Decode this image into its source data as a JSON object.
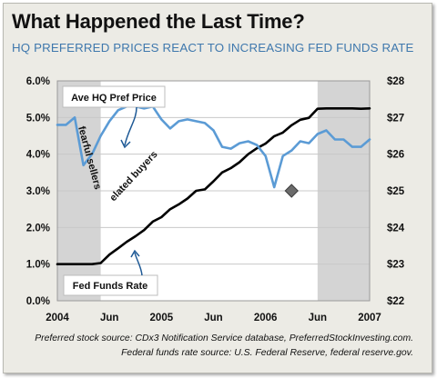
{
  "title": "What Happened the Last Time?",
  "subtitle": "HQ PREFERRED PRICES REACT TO INCREASING FED FUNDS RATE",
  "sources": [
    "Preferred stock source: CDx3 Notification Service database, PreferredStockInvesting.com.",
    "Federal funds rate source: U.S. Federal Reserve, federal reserve.gov."
  ],
  "colors": {
    "fed_funds_line": "#000000",
    "pref_price_line": "#5b9bd5",
    "shaded_region": "#d4d4d4",
    "panel_background": "#ecebe5",
    "subtitle": "#3f78ad"
  },
  "chart_data": {
    "type": "line",
    "x_axis": {
      "range": [
        "2004-01",
        "2007-01"
      ],
      "tick_labels": [
        "2004",
        "Jun",
        "2005",
        "Jun",
        "2006",
        "Jun",
        "2007"
      ]
    },
    "y_left": {
      "range": [
        0,
        6
      ],
      "unit": "%",
      "tick_labels": [
        "0.0%",
        "1.0%",
        "2.0%",
        "3.0%",
        "4.0%",
        "5.0%",
        "6.0%"
      ]
    },
    "y_right": {
      "range": [
        22,
        28
      ],
      "unit": "$",
      "tick_labels": [
        "$22",
        "$23",
        "$24",
        "$25",
        "$26",
        "$27",
        "$28"
      ]
    },
    "grid": true,
    "shaded_periods": [
      {
        "start": "2004-01",
        "end": "2004-06"
      },
      {
        "start": "2006-07",
        "end": "2007-01"
      }
    ],
    "series": [
      {
        "name": "Fed Funds Rate",
        "axis": "left",
        "color": "#000000",
        "x": [
          "2004-01",
          "2004-02",
          "2004-03",
          "2004-04",
          "2004-05",
          "2004-06",
          "2004-07",
          "2004-08",
          "2004-09",
          "2004-10",
          "2004-11",
          "2004-12",
          "2005-01",
          "2005-02",
          "2005-03",
          "2005-04",
          "2005-05",
          "2005-06",
          "2005-07",
          "2005-08",
          "2005-09",
          "2005-10",
          "2005-11",
          "2005-12",
          "2006-01",
          "2006-02",
          "2006-03",
          "2006-04",
          "2006-05",
          "2006-06",
          "2006-07",
          "2006-08",
          "2006-09",
          "2006-10",
          "2006-11",
          "2006-12",
          "2007-01"
        ],
        "values": [
          1.0,
          1.0,
          1.0,
          1.0,
          1.0,
          1.03,
          1.26,
          1.43,
          1.61,
          1.76,
          1.93,
          2.16,
          2.28,
          2.5,
          2.63,
          2.79,
          3.0,
          3.04,
          3.26,
          3.5,
          3.62,
          3.78,
          4.0,
          4.16,
          4.29,
          4.49,
          4.59,
          4.79,
          4.94,
          4.99,
          5.24,
          5.25,
          5.25,
          5.25,
          5.25,
          5.24,
          5.25
        ]
      },
      {
        "name": "Ave HQ Pref Price",
        "axis": "right",
        "color": "#5b9bd5",
        "x": [
          "2004-01",
          "2004-02",
          "2004-03",
          "2004-04",
          "2004-05",
          "2004-06",
          "2004-07",
          "2004-08",
          "2004-09",
          "2004-10",
          "2004-11",
          "2004-12",
          "2005-01",
          "2005-02",
          "2005-03",
          "2005-04",
          "2005-05",
          "2005-06",
          "2005-07",
          "2005-08",
          "2005-09",
          "2005-10",
          "2005-11",
          "2005-12",
          "2006-01",
          "2006-02",
          "2006-03",
          "2006-04",
          "2006-05",
          "2006-06",
          "2006-07",
          "2006-08",
          "2006-09",
          "2006-10",
          "2006-11",
          "2006-12",
          "2007-01"
        ],
        "values": [
          26.8,
          26.8,
          27.0,
          25.7,
          26.0,
          26.5,
          26.9,
          27.2,
          27.3,
          27.3,
          27.25,
          27.3,
          26.95,
          26.7,
          26.9,
          26.95,
          26.9,
          26.85,
          26.65,
          26.2,
          26.15,
          26.3,
          26.35,
          26.25,
          25.95,
          25.1,
          25.95,
          26.1,
          26.35,
          26.3,
          26.55,
          26.65,
          26.4,
          26.4,
          26.2,
          26.2,
          26.4
        ]
      }
    ],
    "annotations": [
      {
        "text": "Ave HQ Pref Price",
        "style": "callout"
      },
      {
        "text": "Fed Funds Rate",
        "style": "callout"
      },
      {
        "text": "fearful sellers",
        "style": "rotated"
      },
      {
        "text": "elated buyers",
        "style": "rotated"
      }
    ],
    "marker": {
      "shape": "diamond",
      "x": "2006-04",
      "value": 3.0,
      "axis": "left"
    }
  }
}
